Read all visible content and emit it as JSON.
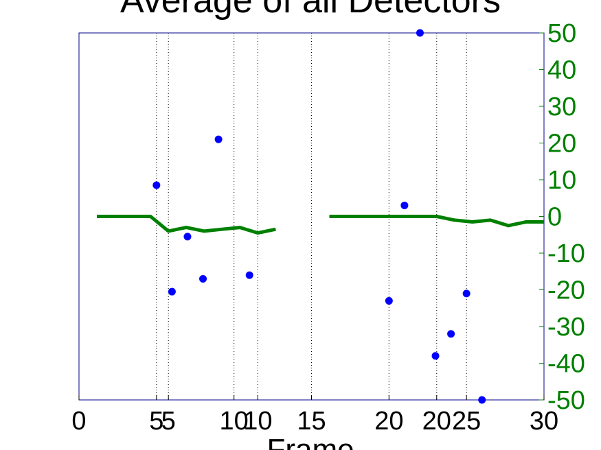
{
  "chart_data": {
    "type": "line",
    "title": "Average of all Detectors",
    "xlabel": "Frame",
    "ylabel": "",
    "grid": "x-dotted",
    "colors": {
      "axis_box": "#00008b",
      "line": "#008000",
      "points": "#0000ff",
      "right_axis": "#008000",
      "grid": "#000000"
    },
    "x_axes": [
      {
        "name": "scatter-x-axis",
        "xlim": [
          0,
          30
        ],
        "ticks": [
          0,
          5,
          10,
          15,
          20,
          25,
          30
        ],
        "tick_labels": [
          "0",
          "5",
          "10",
          "15",
          "20",
          "25",
          "30"
        ]
      },
      {
        "name": "line-x-axis",
        "xlim": [
          0,
          26
        ],
        "ticks": [
          5,
          10,
          20
        ],
        "tick_labels": [
          "5",
          "10",
          "20"
        ]
      }
    ],
    "y_right": {
      "ylim": [
        -50,
        50
      ],
      "ticks": [
        50,
        40,
        30,
        20,
        10,
        0,
        -10,
        -20,
        -30,
        -40,
        -50
      ],
      "tick_labels": [
        "50",
        "40",
        "30",
        "20",
        "10",
        "0",
        "-10",
        "-20",
        "-30",
        "-40",
        "-50"
      ]
    },
    "series": [
      {
        "kind": "line",
        "segments": [
          {
            "x": [
              1,
              2,
              3,
              4,
              5,
              6,
              7,
              8,
              9,
              10,
              11
            ],
            "y": [
              0,
              0,
              0,
              0,
              -4,
              -3,
              -4,
              -3.5,
              -3,
              -4.5,
              -3.5
            ]
          },
          {
            "x": [
              14,
              15,
              16,
              17,
              18,
              19,
              20,
              21,
              22,
              23,
              24,
              25,
              26
            ],
            "y": [
              0,
              0,
              0,
              0,
              0,
              0,
              0,
              -1,
              -1.5,
              -1,
              -2.5,
              -1.5,
              -1.5
            ]
          }
        ],
        "xaxis": "line-x-axis"
      },
      {
        "kind": "scatter",
        "x": [
          5,
          6,
          7,
          8,
          9,
          11,
          20,
          21,
          22,
          23,
          24,
          25,
          26
        ],
        "y": [
          8.5,
          -20.5,
          -5.5,
          -17,
          21,
          -16,
          -23,
          3,
          50,
          -38,
          -32,
          -21,
          -50
        ],
        "xaxis": "scatter-x-axis"
      }
    ]
  }
}
